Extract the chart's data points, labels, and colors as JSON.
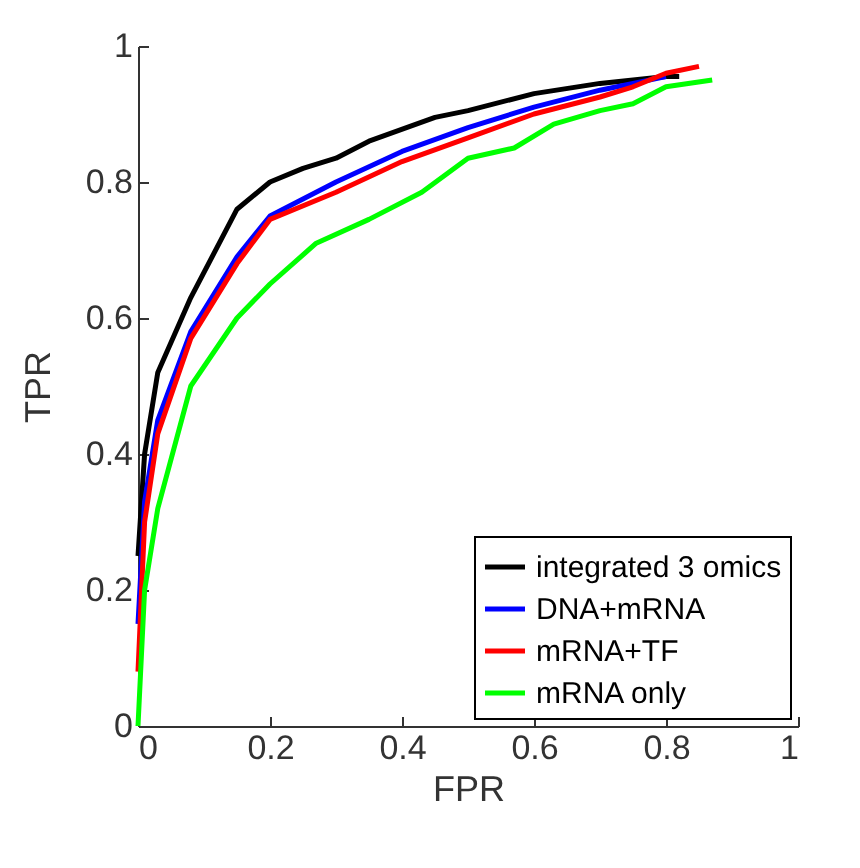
{
  "chart_data": {
    "type": "line",
    "xlabel": "FPR",
    "ylabel": "TPR",
    "xlim": [
      0,
      1
    ],
    "ylim": [
      0,
      1
    ],
    "xticks": [
      0,
      0.2,
      0.4,
      0.6,
      0.8,
      1
    ],
    "yticks": [
      0,
      0.2,
      0.4,
      0.6,
      0.8,
      1
    ],
    "grid": false,
    "legend": "bottom right",
    "marker": "none",
    "line_style": "solid",
    "series": [
      {
        "name": "integrated 3 omics",
        "color": "#000000",
        "x": [
          0,
          0.01,
          0.03,
          0.08,
          0.15,
          0.2,
          0.25,
          0.3,
          0.35,
          0.45,
          0.5,
          0.6,
          0.7,
          0.8,
          0.82
        ],
        "values": [
          0.25,
          0.4,
          0.52,
          0.63,
          0.76,
          0.8,
          0.82,
          0.835,
          0.86,
          0.895,
          0.905,
          0.93,
          0.945,
          0.955,
          0.955
        ]
      },
      {
        "name": "DNA+mRNA",
        "color": "#0000ff",
        "x": [
          0,
          0.01,
          0.03,
          0.08,
          0.15,
          0.2,
          0.3,
          0.4,
          0.5,
          0.6,
          0.7,
          0.8
        ],
        "values": [
          0.15,
          0.33,
          0.45,
          0.58,
          0.69,
          0.75,
          0.8,
          0.845,
          0.88,
          0.91,
          0.935,
          0.955
        ]
      },
      {
        "name": "mRNA+TF",
        "color": "#ff0000",
        "x": [
          0,
          0.01,
          0.03,
          0.08,
          0.15,
          0.2,
          0.3,
          0.4,
          0.5,
          0.6,
          0.7,
          0.75,
          0.8,
          0.85
        ],
        "values": [
          0.08,
          0.3,
          0.43,
          0.57,
          0.68,
          0.745,
          0.785,
          0.83,
          0.865,
          0.9,
          0.925,
          0.94,
          0.96,
          0.97
        ]
      },
      {
        "name": "mRNA only",
        "color": "#00ff00",
        "x": [
          0,
          0.01,
          0.03,
          0.08,
          0.15,
          0.2,
          0.27,
          0.35,
          0.43,
          0.5,
          0.57,
          0.63,
          0.7,
          0.75,
          0.8,
          0.87
        ],
        "values": [
          0,
          0.2,
          0.32,
          0.5,
          0.6,
          0.65,
          0.71,
          0.745,
          0.785,
          0.835,
          0.85,
          0.885,
          0.905,
          0.915,
          0.94,
          0.95
        ]
      }
    ]
  }
}
